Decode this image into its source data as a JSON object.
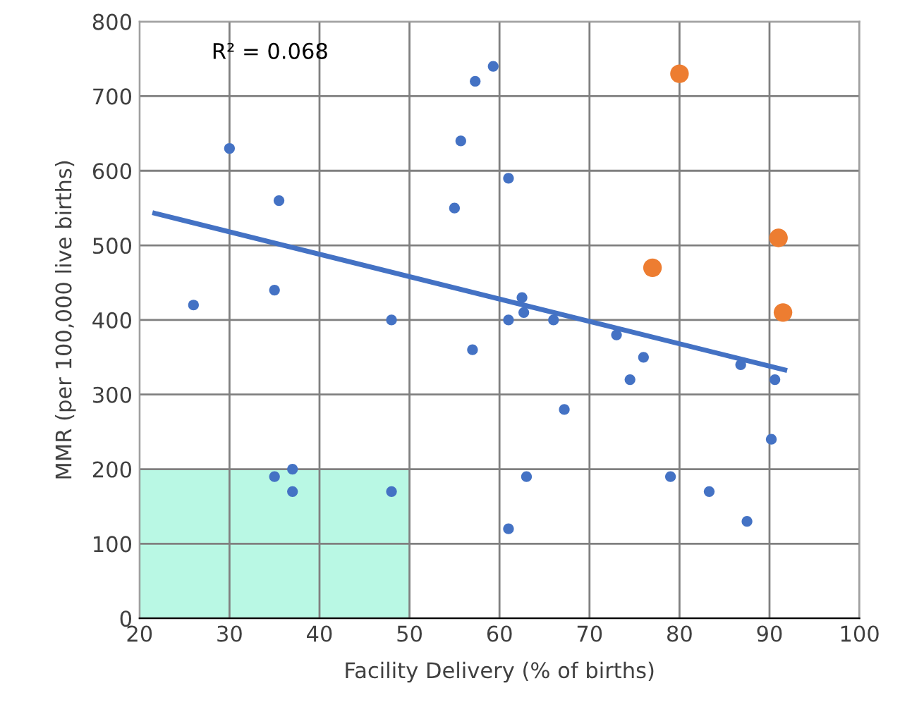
{
  "chart_data": {
    "type": "scatter",
    "xlabel": "Facility Delivery (% of births)",
    "ylabel": "MMR (per 100,000 live births)",
    "xlim": [
      20,
      100
    ],
    "xticks": [
      20,
      30,
      40,
      50,
      60,
      70,
      80,
      90,
      100
    ],
    "ylim": [
      0,
      800
    ],
    "yticks": [
      0,
      100,
      200,
      300,
      400,
      500,
      600,
      700,
      800
    ],
    "grid": true,
    "marker": "circle",
    "annotations": [
      "R² = 0.068"
    ],
    "bands": [
      {
        "axis": "x",
        "from": 20,
        "to": 50,
        "color": "#b9f8e4"
      }
    ],
    "series": [
      {
        "color": "#4472c4",
        "x": [
          26,
          30,
          35.5,
          35,
          35,
          37,
          37,
          48,
          48,
          55,
          55.7,
          57,
          57.3,
          59.3,
          61,
          61,
          61,
          62.5,
          62.7,
          63,
          66,
          67.2,
          73,
          74.5,
          76,
          79,
          83.3,
          86.8,
          87.5,
          90.2,
          90.6
        ],
        "values": [
          420,
          630,
          560,
          440,
          190,
          200,
          170,
          400,
          170,
          550,
          640,
          360,
          720,
          740,
          590,
          400,
          120,
          430,
          410,
          190,
          400,
          280,
          380,
          320,
          350,
          190,
          170,
          340,
          130,
          240,
          320
        ]
      },
      {
        "color": "#ed7d31",
        "x": [
          80,
          77,
          91,
          91.5
        ],
        "values": [
          730,
          470,
          510,
          410
        ]
      },
      {
        "type": "line",
        "marker": "none",
        "color": "#4472c4",
        "x": [
          21.7,
          91.7
        ],
        "values": [
          543,
          333
        ]
      }
    ]
  }
}
